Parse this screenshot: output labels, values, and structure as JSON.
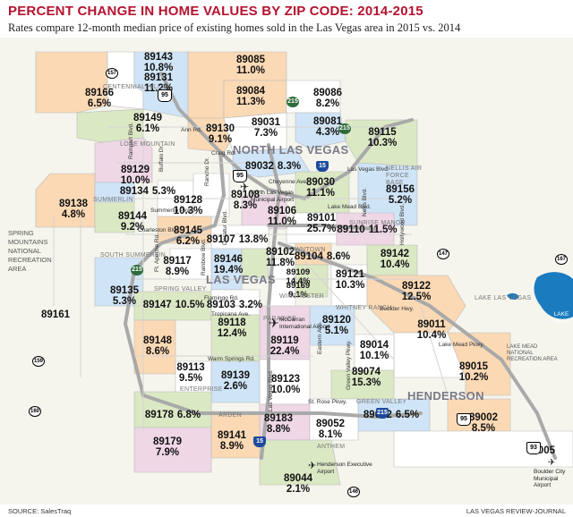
{
  "title": "PERCENT CHANGE IN HOME VALUES BY ZIP CODE: 2014-2015",
  "subtitle": "Rates compare 12-month median price of existing homes sold in the Las Vegas area in 2015 vs. 2014",
  "source": "SOURCE: SalesTraq",
  "credit": "LAS VEGAS REVIEW-JOURNAL",
  "colors": {
    "title": "#b5132f",
    "zone_peach": "#fbd9b5",
    "zone_blue": "#cfe4f6",
    "zone_green": "#dbe8c4",
    "zone_pink": "#efd7e6",
    "zone_white": "#ffffff",
    "lake": "#1a7bbf",
    "freeway": "#a9a9a9"
  },
  "zips": [
    {
      "code": "89143",
      "pct": "10.8%"
    },
    {
      "code": "89131",
      "pct": "11.2%"
    },
    {
      "code": "89085",
      "pct": "11.0%"
    },
    {
      "code": "89166",
      "pct": "6.5%"
    },
    {
      "code": "89084",
      "pct": "11.3%"
    },
    {
      "code": "89086",
      "pct": "8.2%"
    },
    {
      "code": "89149",
      "pct": "6.1%"
    },
    {
      "code": "89130",
      "pct": "9.1%"
    },
    {
      "code": "89031",
      "pct": "7.3%"
    },
    {
      "code": "89081",
      "pct": "4.3%"
    },
    {
      "code": "89115",
      "pct": "10.3%"
    },
    {
      "code": "89129",
      "pct": "10.0%"
    },
    {
      "code": "89032",
      "pct": "8.3%"
    },
    {
      "code": "89134",
      "pct": "5.3%"
    },
    {
      "code": "89138",
      "pct": "4.8%"
    },
    {
      "code": "89128",
      "pct": "10.3%"
    },
    {
      "code": "89108",
      "pct": "8.3%"
    },
    {
      "code": "89030",
      "pct": "11.1%"
    },
    {
      "code": "89156",
      "pct": "5.2%"
    },
    {
      "code": "89144",
      "pct": "9.2%"
    },
    {
      "code": "89106",
      "pct": "11.0%"
    },
    {
      "code": "89101",
      "pct": "25.7%"
    },
    {
      "code": "89110",
      "pct": "11.5%"
    },
    {
      "code": "89145",
      "pct": "6.2%"
    },
    {
      "code": "89107",
      "pct": "13.8%"
    },
    {
      "code": "89117",
      "pct": "8.9%"
    },
    {
      "code": "89146",
      "pct": "19.4%"
    },
    {
      "code": "89102",
      "pct": "11.8%"
    },
    {
      "code": "89104",
      "pct": "8.6%"
    },
    {
      "code": "89142",
      "pct": "10.4%"
    },
    {
      "code": "89135",
      "pct": "5.3%"
    },
    {
      "code": "89121",
      "pct": "10.3%"
    },
    {
      "code": "89109",
      "pct": "14.4%"
    },
    {
      "code": "89169",
      "pct": "9.1%"
    },
    {
      "code": "89122",
      "pct": "12.5%"
    },
    {
      "code": "89161",
      "pct": ""
    },
    {
      "code": "89147",
      "pct": "10.5%"
    },
    {
      "code": "89103",
      "pct": "3.2%"
    },
    {
      "code": "89118",
      "pct": "12.4%"
    },
    {
      "code": "89120",
      "pct": "5.1%"
    },
    {
      "code": "89011",
      "pct": "10.4%"
    },
    {
      "code": "89148",
      "pct": "8.6%"
    },
    {
      "code": "89119",
      "pct": "22.4%"
    },
    {
      "code": "89014",
      "pct": "10.1%"
    },
    {
      "code": "89015",
      "pct": "10.2%"
    },
    {
      "code": "89113",
      "pct": "9.5%"
    },
    {
      "code": "89139",
      "pct": "2.6%"
    },
    {
      "code": "89123",
      "pct": "10.0%"
    },
    {
      "code": "89074",
      "pct": "15.3%"
    },
    {
      "code": "89012",
      "pct": "6.5%"
    },
    {
      "code": "89178",
      "pct": "6.8%"
    },
    {
      "code": "89002",
      "pct": "8.5%"
    },
    {
      "code": "89183",
      "pct": "8.8%"
    },
    {
      "code": "89052",
      "pct": "8.1%"
    },
    {
      "code": "89179",
      "pct": "7.9%"
    },
    {
      "code": "89141",
      "pct": "8.9%"
    },
    {
      "code": "89005",
      "pct": ""
    },
    {
      "code": "89044",
      "pct": "2.1%"
    }
  ],
  "cities": {
    "north_las_vegas": "NORTH LAS VEGAS",
    "las_vegas": "LAS VEGAS",
    "henderson": "HENDERSON"
  },
  "areas": {
    "centennial_hills": "CENTENNIAL HILLS",
    "lone_mountain": "LONE MOUNTAIN",
    "summerlin": "SUMMERLIN",
    "south_summerlin": "SOUTH SUMMERLIN",
    "spring_valley": "SPRING VALLEY",
    "downtown": "DOWNTOWN",
    "sunrise_manor": "SUNRISE MANOR",
    "winchester": "WINCHESTER",
    "paradise": "PARADISE",
    "whitney_ranch": "WHITNEY RANCH",
    "enterprise": "ENTERPRISE",
    "arden": "ARDEN",
    "green_valley": "GREEN VALLEY",
    "anthem": "ANTHEM",
    "nellis": "NELLIS AIR FORCE BASE"
  },
  "landmarks": {
    "spring_mountains": "SPRING MOUNTAINS NATIONAL RECREATION AREA",
    "lake_mead": "LAKE MEAD",
    "lake_mead_area": "LAKE MEAD NATIONAL RECREATION AREA",
    "lake_las_vegas": "LAKE LAS VEGAS",
    "nlv_airport": "North Las Vegas Municipal Airport",
    "mccarran": "McCarran International Airport",
    "henderson_airport": "Henderson Executive Airport",
    "boulder_airport": "Boulder City Municipal Airport"
  },
  "streets": {
    "ann": "Ann Rd.",
    "craig": "Craig Rd.",
    "cheyenne": "Cheyenne Ave.",
    "lake_mead_blvd": "Lake Mead Blvd.",
    "charleston": "Charleston Blvd.",
    "flamingo": "Flamingo Rd.",
    "tropicana": "Tropicana Ave.",
    "warm_springs": "Warm Springs Rd.",
    "rampart": "Rampart Blvd.",
    "buffalo": "Buffalo Dr.",
    "rancho": "Rancho Dr.",
    "decatur": "Decatur Blvd.",
    "fort_apache": "Ft. Apache Rd.",
    "rainbow": "Rainbow Blvd.",
    "las_vegas_blvd": "Las Vegas Blvd.",
    "lv_blvd_north": "Las Vegas Blvd.",
    "summerlin_pkwy": "Summerlin Pkwy.",
    "nellis": "Nellis Blvd.",
    "hollywood": "Hollywood Blvd.",
    "boulder_hwy": "Boulder Hwy.",
    "lake_mead_pkwy": "Lake Mead Pkwy.",
    "eastern": "Eastern Ave.",
    "green_valley_pkwy": "Green Valley Pkwy.",
    "st_rose": "St. Rose Pkwy."
  },
  "shields": {
    "i15_north": "15",
    "i15_south": "15",
    "i215": "215",
    "us95_north": "95",
    "us95_mid": "95",
    "us95_south": "95",
    "us93": "93",
    "beltway_215_nw": "215",
    "beltway_215_n": "215",
    "beltway_215_sw": "215",
    "sr157": "157",
    "sr159": "159",
    "sr160": "160",
    "sr167": "167",
    "sr147": "147",
    "sr146": "146"
  }
}
